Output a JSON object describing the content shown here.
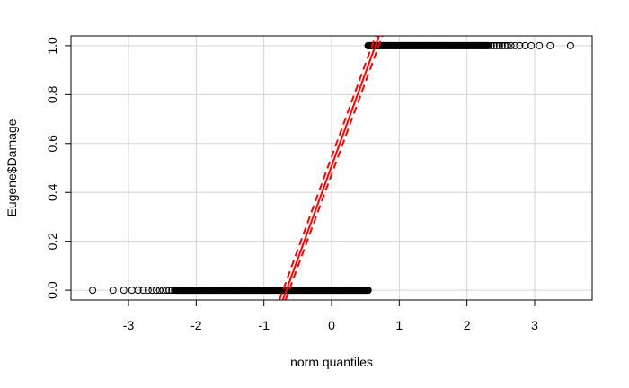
{
  "chart_data": {
    "type": "scatter",
    "xlabel": "norm quantiles",
    "ylabel": "Eugene$Damage",
    "xlim": [
      -3.85,
      3.85
    ],
    "ylim": [
      -0.04,
      1.04
    ],
    "x_ticks": [
      -3,
      -2,
      -1,
      0,
      1,
      2,
      3
    ],
    "y_ticks": [
      0.0,
      0.2,
      0.4,
      0.6,
      0.8,
      1.0
    ],
    "x_tick_labels": [
      "-3",
      "-2",
      "-1",
      "0",
      "1",
      "2",
      "3"
    ],
    "y_tick_labels": [
      "0.0",
      "0.2",
      "0.4",
      "0.6",
      "0.8",
      "1.0"
    ],
    "grid": true,
    "series": [
      {
        "marker": "open-circle",
        "color": "#000000",
        "points": [
          [
            -3.53,
            0
          ],
          [
            -3.23,
            0
          ],
          [
            -3.07,
            0
          ],
          [
            -2.95,
            0
          ],
          [
            -2.86,
            0
          ],
          [
            -2.78,
            0
          ],
          [
            -2.71,
            0
          ],
          [
            -2.65,
            0
          ],
          [
            -2.59,
            0
          ],
          [
            -2.54,
            0
          ],
          [
            -2.49,
            0
          ],
          [
            -2.44,
            0
          ],
          [
            -2.4,
            0
          ],
          [
            -2.36,
            0
          ],
          [
            -2.32,
            0
          ],
          [
            -2.28,
            0
          ],
          [
            -2.24,
            0
          ],
          [
            -2.2,
            0
          ],
          [
            -2.16,
            0
          ],
          [
            -2.12,
            0
          ],
          [
            -2.08,
            0
          ],
          [
            -2.04,
            0
          ],
          [
            -2.0,
            0
          ],
          [
            -1.95,
            0
          ],
          [
            -1.9,
            0
          ],
          [
            -1.85,
            0
          ],
          [
            -1.8,
            0
          ],
          [
            -1.75,
            0
          ],
          [
            -1.7,
            0
          ],
          [
            -1.64,
            0
          ],
          [
            -1.58,
            0
          ],
          [
            -1.52,
            0
          ],
          [
            -1.46,
            0
          ],
          [
            -1.4,
            0
          ],
          [
            -1.34,
            0
          ],
          [
            -1.28,
            0
          ],
          [
            -1.22,
            0
          ],
          [
            -1.16,
            0
          ],
          [
            -1.1,
            0
          ],
          [
            -1.04,
            0
          ],
          [
            -0.98,
            0
          ],
          [
            -0.92,
            0
          ],
          [
            -0.86,
            0
          ],
          [
            -0.8,
            0
          ],
          [
            -0.74,
            0
          ],
          [
            -0.68,
            0
          ],
          [
            -0.62,
            0
          ],
          [
            -0.56,
            0
          ],
          [
            -0.5,
            0
          ],
          [
            -0.44,
            0
          ],
          [
            -0.38,
            0
          ],
          [
            -0.32,
            0
          ],
          [
            -0.26,
            0
          ],
          [
            -0.2,
            0
          ],
          [
            -0.14,
            0
          ],
          [
            -0.08,
            0
          ],
          [
            -0.02,
            0
          ],
          [
            0.04,
            0
          ],
          [
            0.1,
            0
          ],
          [
            0.16,
            0
          ],
          [
            0.22,
            0
          ],
          [
            0.28,
            0
          ],
          [
            0.34,
            0
          ],
          [
            0.4,
            0
          ],
          [
            0.46,
            0
          ],
          [
            0.52,
            0
          ],
          [
            0.54,
            0
          ],
          [
            0.54,
            1
          ],
          [
            0.58,
            1
          ],
          [
            0.64,
            1
          ],
          [
            0.7,
            1
          ],
          [
            0.76,
            1
          ],
          [
            0.82,
            1
          ],
          [
            0.88,
            1
          ],
          [
            0.94,
            1
          ],
          [
            1.0,
            1
          ],
          [
            1.06,
            1
          ],
          [
            1.12,
            1
          ],
          [
            1.18,
            1
          ],
          [
            1.24,
            1
          ],
          [
            1.3,
            1
          ],
          [
            1.36,
            1
          ],
          [
            1.42,
            1
          ],
          [
            1.48,
            1
          ],
          [
            1.54,
            1
          ],
          [
            1.6,
            1
          ],
          [
            1.66,
            1
          ],
          [
            1.72,
            1
          ],
          [
            1.78,
            1
          ],
          [
            1.84,
            1
          ],
          [
            1.9,
            1
          ],
          [
            1.96,
            1
          ],
          [
            2.02,
            1
          ],
          [
            2.08,
            1
          ],
          [
            2.14,
            1
          ],
          [
            2.2,
            1
          ],
          [
            2.24,
            1
          ],
          [
            2.28,
            1
          ],
          [
            2.32,
            1
          ],
          [
            2.36,
            1
          ],
          [
            2.4,
            1
          ],
          [
            2.44,
            1
          ],
          [
            2.48,
            1
          ],
          [
            2.52,
            1
          ],
          [
            2.56,
            1
          ],
          [
            2.6,
            1
          ],
          [
            2.65,
            1
          ],
          [
            2.71,
            1
          ],
          [
            2.78,
            1
          ],
          [
            2.86,
            1
          ],
          [
            2.95,
            1
          ],
          [
            3.07,
            1
          ],
          [
            3.23,
            1
          ],
          [
            3.53,
            1
          ]
        ]
      }
    ],
    "reference_line": {
      "color": "#ff0000",
      "style": "solid",
      "points": [
        [
          -0.72,
          -0.04
        ],
        [
          0.7,
          1.04
        ]
      ]
    },
    "confidence_bands": {
      "color": "#ff0000",
      "style": "dashed",
      "lower": [
        [
          -0.68,
          -0.04
        ],
        [
          0.75,
          1.04
        ]
      ],
      "upper": [
        [
          -0.77,
          -0.04
        ],
        [
          0.65,
          1.04
        ]
      ]
    }
  }
}
